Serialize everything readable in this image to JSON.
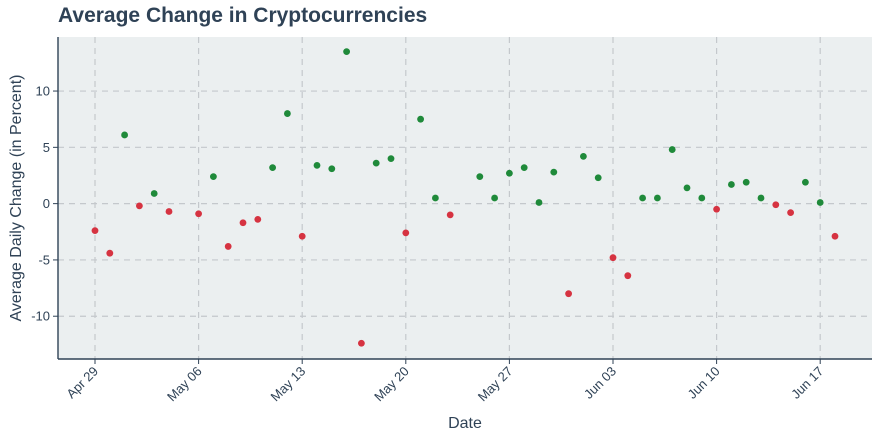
{
  "chart_data": {
    "type": "scatter",
    "title": "Average Change in Cryptocurrencies",
    "xlabel": "Date",
    "ylabel": "Average Daily Change (in Percent)",
    "x_ticks": [
      "Apr 29",
      "May 06",
      "May 13",
      "May 20",
      "May 27",
      "Jun 03",
      "Jun 10",
      "Jun 17"
    ],
    "y_ticks": [
      -10,
      -5,
      0,
      5,
      10
    ],
    "xlim": [
      "2024-04-29",
      "2024-06-19"
    ],
    "ylim": [
      -13.8,
      14.8
    ],
    "grid": true,
    "colors": {
      "positive": "#1f8a3a",
      "negative": "#d63341",
      "plot_bg": "#ebeff0",
      "grid": "#c4c8cc",
      "text": "#2f4256"
    },
    "points": [
      {
        "x": "2024-04-29",
        "y": -2.4
      },
      {
        "x": "2024-04-30",
        "y": -4.4
      },
      {
        "x": "2024-05-01",
        "y": 6.1
      },
      {
        "x": "2024-05-02",
        "y": -0.2
      },
      {
        "x": "2024-05-03",
        "y": 0.9
      },
      {
        "x": "2024-05-04",
        "y": -0.7
      },
      {
        "x": "2024-05-06",
        "y": -0.9
      },
      {
        "x": "2024-05-07",
        "y": 2.4
      },
      {
        "x": "2024-05-08",
        "y": -3.8
      },
      {
        "x": "2024-05-09",
        "y": -1.7
      },
      {
        "x": "2024-05-10",
        "y": -1.4
      },
      {
        "x": "2024-05-11",
        "y": 3.2
      },
      {
        "x": "2024-05-12",
        "y": 8.0
      },
      {
        "x": "2024-05-13",
        "y": -2.9
      },
      {
        "x": "2024-05-14",
        "y": 3.4
      },
      {
        "x": "2024-05-15",
        "y": 3.1
      },
      {
        "x": "2024-05-16",
        "y": 13.5
      },
      {
        "x": "2024-05-17",
        "y": -12.4
      },
      {
        "x": "2024-05-18",
        "y": 3.6
      },
      {
        "x": "2024-05-19",
        "y": 4.0
      },
      {
        "x": "2024-05-20",
        "y": -2.6
      },
      {
        "x": "2024-05-21",
        "y": 7.5
      },
      {
        "x": "2024-05-22",
        "y": 0.5
      },
      {
        "x": "2024-05-23",
        "y": -1.0
      },
      {
        "x": "2024-05-25",
        "y": 2.4
      },
      {
        "x": "2024-05-26",
        "y": 0.5
      },
      {
        "x": "2024-05-27",
        "y": 2.7
      },
      {
        "x": "2024-05-28",
        "y": 3.2
      },
      {
        "x": "2024-05-29",
        "y": 0.1
      },
      {
        "x": "2024-05-30",
        "y": 2.8
      },
      {
        "x": "2024-05-31",
        "y": -8.0
      },
      {
        "x": "2024-06-01",
        "y": 4.2
      },
      {
        "x": "2024-06-02",
        "y": 2.3
      },
      {
        "x": "2024-06-03",
        "y": -4.8
      },
      {
        "x": "2024-06-04",
        "y": -6.4
      },
      {
        "x": "2024-06-05",
        "y": 0.5
      },
      {
        "x": "2024-06-06",
        "y": 0.5
      },
      {
        "x": "2024-06-07",
        "y": 4.8
      },
      {
        "x": "2024-06-08",
        "y": 1.4
      },
      {
        "x": "2024-06-09",
        "y": 0.5
      },
      {
        "x": "2024-06-10",
        "y": -0.5
      },
      {
        "x": "2024-06-11",
        "y": 1.7
      },
      {
        "x": "2024-06-12",
        "y": 1.9
      },
      {
        "x": "2024-06-13",
        "y": 0.5
      },
      {
        "x": "2024-06-14",
        "y": -0.1
      },
      {
        "x": "2024-06-15",
        "y": -0.8
      },
      {
        "x": "2024-06-16",
        "y": 1.9
      },
      {
        "x": "2024-06-17",
        "y": 0.1
      },
      {
        "x": "2024-06-18",
        "y": -2.9
      }
    ]
  }
}
